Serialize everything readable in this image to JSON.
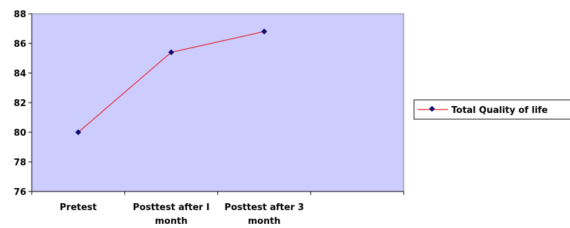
{
  "chart_data": {
    "type": "line",
    "categories": [
      "Pretest",
      "Posttest after I month",
      "Posttest after 3 month"
    ],
    "category_lines": [
      [
        "Pretest"
      ],
      [
        "Posttest after I",
        "month"
      ],
      [
        "Posttest after 3",
        "month"
      ]
    ],
    "series": [
      {
        "name": "Total Quality of life",
        "values": [
          80.0,
          85.4,
          86.8
        ],
        "color": "#e8202a",
        "marker_color": "#0a0a6e"
      }
    ],
    "ylim": [
      76,
      88
    ],
    "yticks": [
      76,
      78,
      80,
      82,
      84,
      86,
      88
    ],
    "category_slots": 4,
    "grid": false,
    "legend": "right",
    "plot_background": "#ccccff"
  }
}
